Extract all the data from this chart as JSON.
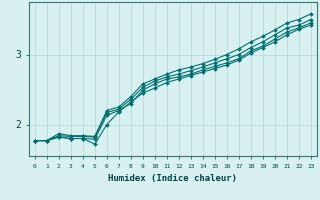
{
  "xlabel": "Humidex (Indice chaleur)",
  "ylabel": "",
  "bg_color": "#d8f0f0",
  "line_color": "#007070",
  "grid_color": "#b8dada",
  "xlim": [
    -0.5,
    23.5
  ],
  "ylim": [
    1.55,
    3.75
  ],
  "xticks": [
    0,
    1,
    2,
    3,
    4,
    5,
    6,
    7,
    8,
    9,
    10,
    11,
    12,
    13,
    14,
    15,
    16,
    17,
    18,
    19,
    20,
    21,
    22,
    23
  ],
  "yticks": [
    2,
    3
  ],
  "series": [
    [
      1.77,
      1.77,
      1.82,
      1.8,
      1.8,
      1.72,
      2.0,
      2.18,
      2.32,
      2.45,
      2.52,
      2.6,
      2.65,
      2.7,
      2.75,
      2.8,
      2.85,
      2.92,
      3.02,
      3.1,
      3.18,
      3.28,
      3.36,
      3.42
    ],
    [
      1.77,
      1.77,
      1.82,
      1.8,
      1.8,
      1.79,
      2.13,
      2.2,
      2.3,
      2.49,
      2.58,
      2.65,
      2.68,
      2.72,
      2.78,
      2.83,
      2.88,
      2.94,
      3.05,
      3.12,
      3.22,
      3.32,
      3.38,
      3.45
    ],
    [
      1.77,
      1.77,
      1.84,
      1.83,
      1.83,
      1.82,
      2.17,
      2.22,
      2.36,
      2.53,
      2.62,
      2.68,
      2.72,
      2.77,
      2.82,
      2.88,
      2.94,
      3.0,
      3.1,
      3.18,
      3.28,
      3.38,
      3.42,
      3.5
    ],
    [
      1.77,
      1.77,
      1.87,
      1.84,
      1.84,
      1.83,
      2.2,
      2.25,
      2.4,
      2.58,
      2.65,
      2.72,
      2.78,
      2.82,
      2.87,
      2.93,
      3.0,
      3.08,
      3.18,
      3.26,
      3.35,
      3.45,
      3.5,
      3.58
    ]
  ]
}
